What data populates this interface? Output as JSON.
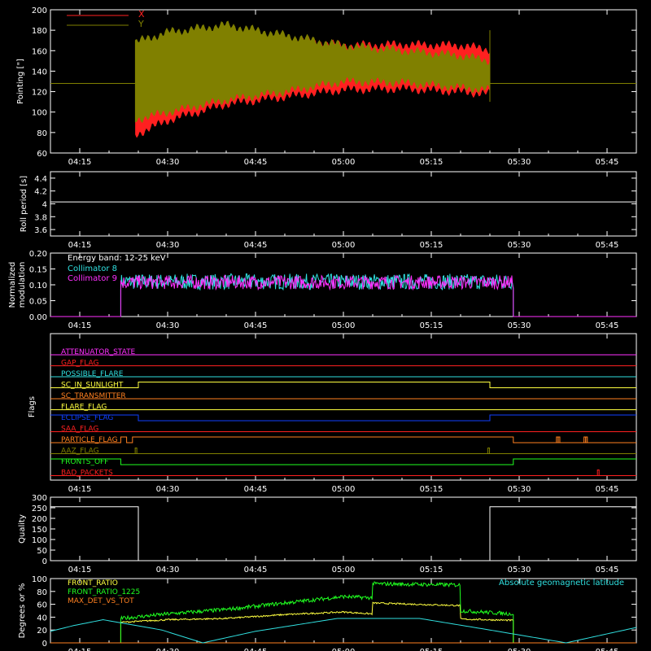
{
  "x_ticks": [
    "04:15",
    "04:30",
    "04:45",
    "05:00",
    "05:15",
    "05:30",
    "05:45"
  ],
  "x_range_min": [
    250,
    350
  ],
  "x_tick_min": [
    255,
    270,
    285,
    300,
    315,
    330,
    345
  ],
  "colors": {
    "background": "#000000",
    "axis": "#ffffff",
    "red": "#ff2020",
    "olive": "#808000",
    "cyan": "#30e0e0",
    "magenta": "#ff30ff",
    "green": "#20ff20",
    "yellow": "#ffff40",
    "orange": "#ff8020",
    "blue": "#1040ff",
    "white": "#ffffff"
  },
  "chart_data": [
    {
      "id": "pointing",
      "type": "area",
      "ylabel": "Pointing [\"]",
      "ylim": [
        60,
        200
      ],
      "yticks": [
        60,
        80,
        100,
        120,
        140,
        160,
        180,
        200
      ],
      "legend": "top-left",
      "baseline": 128,
      "series": [
        {
          "name": "X",
          "color": "red",
          "t": [
            264.5,
            270,
            280,
            290,
            300,
            310,
            320,
            325
          ],
          "upper": [
            165,
            170,
            176,
            172,
            165,
            166,
            165,
            161
          ],
          "lower": [
            78,
            92,
            108,
            115,
            122,
            123,
            120,
            118
          ]
        },
        {
          "name": "Y",
          "color": "olive",
          "t": [
            264.5,
            270,
            280,
            290,
            300,
            310,
            320,
            325
          ],
          "upper": [
            168,
            178,
            185,
            175,
            165,
            160,
            155,
            150
          ],
          "lower": [
            93,
            100,
            112,
            120,
            130,
            129,
            124,
            122
          ]
        }
      ]
    },
    {
      "id": "roll",
      "type": "line",
      "ylabel": "Roll period [s]",
      "ylim": [
        3.5,
        4.5
      ],
      "yticks": [
        3.6,
        3.8,
        4.0,
        4.2,
        4.4
      ],
      "series": [
        {
          "color": "white",
          "t": [
            250,
            350
          ],
          "y": [
            4.03,
            4.03
          ]
        }
      ]
    },
    {
      "id": "modulation",
      "type": "line",
      "ylabel": "Normalized modulation",
      "ylim": [
        0,
        0.2
      ],
      "yticks": [
        "0.00",
        "0.05",
        "0.10",
        "0.15",
        "0.20"
      ],
      "annotations": [
        "Energy band: 12-25 keV"
      ],
      "series": [
        {
          "name": "Collimator 8",
          "color": "cyan",
          "start": 262,
          "end": 329,
          "mean": 0.11,
          "spread": 0.025
        },
        {
          "name": "Collimator 9",
          "color": "magenta",
          "start": 262,
          "end": 329,
          "mean": 0.108,
          "spread": 0.022
        }
      ]
    },
    {
      "id": "flags",
      "type": "line",
      "ylabel": "Flags",
      "series": [
        {
          "name": "ATTENUATOR_STATE",
          "color": "magenta",
          "changes": []
        },
        {
          "name": "GAP_FLAG",
          "color": "red",
          "changes": []
        },
        {
          "name": "POSSIBLE_FLARE",
          "color": "cyan",
          "changes": []
        },
        {
          "name": "SC_IN_SUNLIGHT",
          "color": "yellow",
          "segments": [
            [
              250,
              265,
              0
            ],
            [
              265,
              325,
              1
            ],
            [
              325,
              350,
              0
            ]
          ]
        },
        {
          "name": "SC_TRANSMITTER",
          "color": "orange",
          "changes": []
        },
        {
          "name": "FLARE_FLAG",
          "color": "yellow",
          "changes": []
        },
        {
          "name": "ECLIPSE_FLAG",
          "color": "blue",
          "segments": [
            [
              250,
              265,
              1
            ],
            [
              265,
              325,
              0
            ],
            [
              325,
              350,
              1
            ]
          ]
        },
        {
          "name": "SAA_FLAG",
          "color": "red",
          "changes": []
        },
        {
          "name": "PARTICLE_FLAG",
          "color": "orange",
          "segments": [
            [
              250,
              262,
              0
            ],
            [
              262,
              263,
              1
            ],
            [
              263,
              264,
              0
            ],
            [
              264,
              265,
              1
            ],
            [
              265,
              329,
              1
            ],
            [
              329,
              350,
              0
            ]
          ],
          "spikes": [
            336.5,
            336.8,
            341.2,
            341.5
          ]
        },
        {
          "name": "AAZ_FLAG",
          "color": "olive",
          "spikes": [
            264.6,
            324.8
          ]
        },
        {
          "name": "FRONTS_OFF",
          "color": "green",
          "segments": [
            [
              250,
              262,
              1
            ],
            [
              262,
              329,
              0
            ],
            [
              329,
              350,
              1
            ]
          ]
        },
        {
          "name": "BAD_PACKETS",
          "color": "red",
          "spikes": [
            343.5
          ]
        }
      ]
    },
    {
      "id": "quality",
      "type": "line",
      "ylabel": "Quality",
      "ylim": [
        0,
        300
      ],
      "yticks": [
        0,
        50,
        100,
        150,
        200,
        250,
        300
      ],
      "series": [
        {
          "color": "white",
          "segments": [
            [
              250,
              265,
              255
            ],
            [
              265,
              325,
              0
            ],
            [
              325,
              350,
              255
            ]
          ]
        }
      ]
    },
    {
      "id": "ratios",
      "type": "line",
      "ylabel": "Degrees or %",
      "ylim": [
        0,
        100
      ],
      "yticks": [
        0,
        20,
        40,
        60,
        80,
        100
      ],
      "annotations": [
        "Absolute geomagnetic latitude"
      ],
      "series": [
        {
          "name": "FRONT_RATIO",
          "color": "yellow",
          "start": 262,
          "end": 329,
          "t": [
            262,
            270,
            280,
            290,
            300,
            305,
            305.01,
            320,
            320.01,
            329
          ],
          "y": [
            32,
            36,
            38,
            44,
            48,
            45,
            62,
            58,
            37,
            35
          ]
        },
        {
          "name": "FRONT_RATIO_1225",
          "color": "green",
          "start": 262,
          "end": 329,
          "t": [
            262,
            270,
            280,
            290,
            300,
            305,
            305.01,
            320,
            320.01,
            329
          ],
          "y": [
            38,
            45,
            52,
            62,
            72,
            70,
            92,
            90,
            50,
            45
          ]
        },
        {
          "name": "MAX_DET_VS_TOT",
          "color": "orange",
          "t": [
            250,
            350
          ],
          "y": [
            0,
            0
          ]
        },
        {
          "name": "Absolute geomagnetic latitude",
          "color": "cyan",
          "t": [
            250,
            254,
            259,
            269,
            276,
            285,
            299,
            313,
            325,
            338,
            347,
            350
          ],
          "y": [
            18,
            27,
            36,
            20,
            0,
            18,
            38,
            38,
            20,
            0,
            18,
            24
          ]
        }
      ]
    }
  ]
}
